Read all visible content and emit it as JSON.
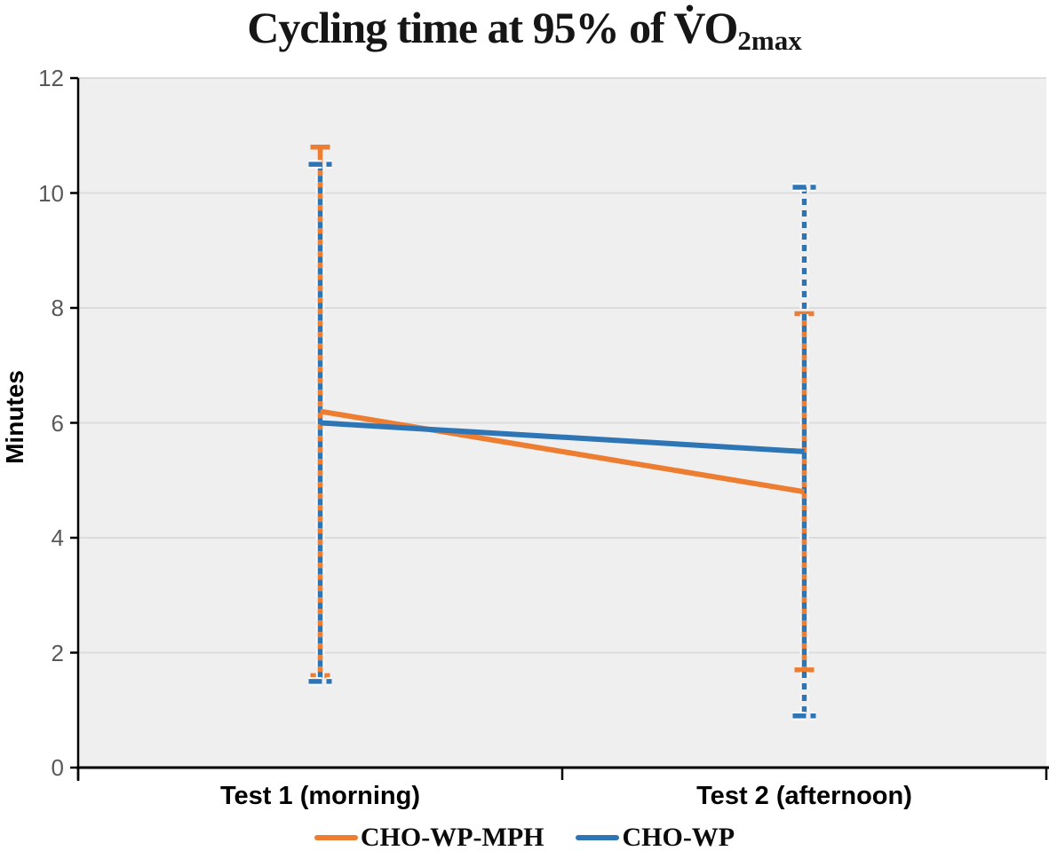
{
  "figure": {
    "title_prefix": "Cycling time at 95% of ",
    "title_vo": "V̇O",
    "title_subscript": "2max",
    "ylabel": "Minutes"
  },
  "chart_data": {
    "type": "line",
    "title": "Cycling time at 95% of V̇O2max",
    "xlabel": "",
    "ylabel": "Minutes",
    "ylim": [
      0,
      12
    ],
    "yticks": [
      0,
      2,
      4,
      6,
      8,
      10,
      12
    ],
    "categories": [
      "Test 1 (morning)",
      "Test 2 (afternoon)"
    ],
    "series": [
      {
        "name": "CHO-WP-MPH",
        "color": "#ED7D31",
        "line_style": "solid",
        "error_bar_style": "solid",
        "values": [
          6.2,
          4.8
        ],
        "error_low": [
          1.6,
          1.7
        ],
        "error_high": [
          10.8,
          7.9
        ]
      },
      {
        "name": "CHO-WP",
        "color": "#2E75B6",
        "line_style": "solid",
        "error_bar_style": "dashed",
        "values": [
          6.0,
          5.5
        ],
        "error_low": [
          1.5,
          0.9
        ],
        "error_high": [
          10.5,
          10.1
        ]
      }
    ],
    "legend_position": "bottom",
    "grid": true,
    "plot_background": "#EFEFEF",
    "gridline_color": "#DCDCDC",
    "axis_color": "#000000",
    "tick_label_color": "#595959"
  }
}
